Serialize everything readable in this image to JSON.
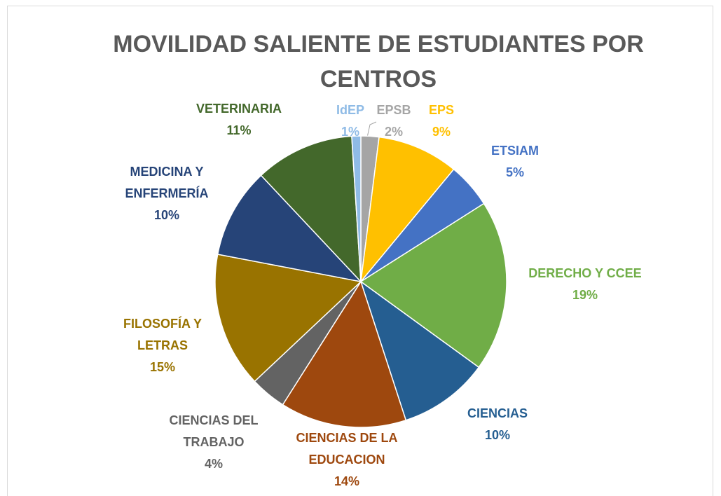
{
  "chart_data": {
    "type": "pie",
    "title": "MOVILIDAD SALIENTE DE ESTUDIANTES POR CENTROS",
    "categories": [
      "EPSB",
      "EPS",
      "ETSIAM",
      "DERECHO Y CCEE",
      "CIENCIAS",
      "CIENCIAS DE LA EDUCACION",
      "CIENCIAS DEL TRABAJO",
      "FILOSOFÍA Y LETRAS",
      "MEDICINA Y ENFERMERÍA",
      "VETERINARIA",
      "IdEP"
    ],
    "values": [
      2,
      9,
      5,
      19,
      10,
      14,
      4,
      15,
      10,
      11,
      1
    ],
    "value_labels": [
      "2%",
      "9%",
      "5%",
      "19%",
      "10%",
      "14%",
      "4%",
      "15%",
      "10%",
      "11%",
      "1%"
    ],
    "colors": [
      "#a5a5a5",
      "#ffc000",
      "#4472c4",
      "#70ad47",
      "#255e91",
      "#9e480e",
      "#636363",
      "#997300",
      "#264478",
      "#43682b",
      "#8fbbe6"
    ]
  }
}
